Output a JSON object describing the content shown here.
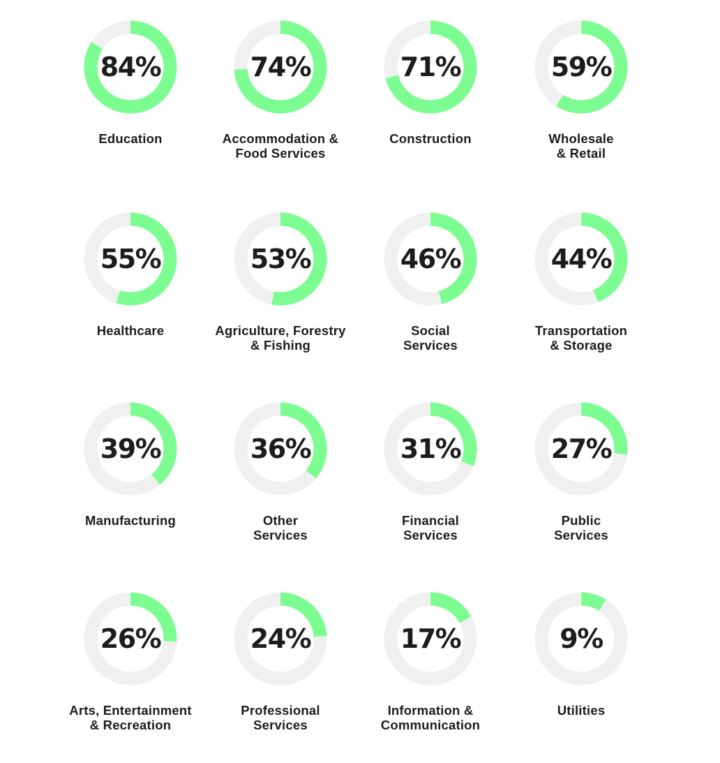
{
  "chart_data": {
    "type": "donut",
    "value_unit": "%",
    "colors": {
      "fill": "#7dfc92",
      "track": "#f0f0f0",
      "text": "#1c1c1c"
    },
    "items": [
      {
        "value": 84,
        "value_label": "84%",
        "label_lines": [
          "Education"
        ]
      },
      {
        "value": 74,
        "value_label": "74%",
        "label_lines": [
          "Accommodation &",
          "Food Services"
        ]
      },
      {
        "value": 71,
        "value_label": "71%",
        "label_lines": [
          "Construction"
        ]
      },
      {
        "value": 59,
        "value_label": "59%",
        "label_lines": [
          "Wholesale",
          "& Retail"
        ]
      },
      {
        "value": 55,
        "value_label": "55%",
        "label_lines": [
          "Healthcare"
        ]
      },
      {
        "value": 53,
        "value_label": "53%",
        "label_lines": [
          "Agriculture, Forestry",
          "& Fishing"
        ]
      },
      {
        "value": 46,
        "value_label": "46%",
        "label_lines": [
          "Social",
          "Services"
        ]
      },
      {
        "value": 44,
        "value_label": "44%",
        "label_lines": [
          "Transportation",
          "& Storage"
        ]
      },
      {
        "value": 39,
        "value_label": "39%",
        "label_lines": [
          "Manufacturing"
        ]
      },
      {
        "value": 36,
        "value_label": "36%",
        "label_lines": [
          "Other",
          "Services"
        ]
      },
      {
        "value": 31,
        "value_label": "31%",
        "label_lines": [
          "Financial",
          "Services"
        ]
      },
      {
        "value": 27,
        "value_label": "27%",
        "label_lines": [
          "Public",
          "Services"
        ]
      },
      {
        "value": 26,
        "value_label": "26%",
        "label_lines": [
          "Arts, Entertainment",
          "& Recreation"
        ]
      },
      {
        "value": 24,
        "value_label": "24%",
        "label_lines": [
          "Professional",
          "Services"
        ]
      },
      {
        "value": 17,
        "value_label": "17%",
        "label_lines": [
          "Information &",
          "Communication"
        ]
      },
      {
        "value": 9,
        "value_label": "9%",
        "label_lines": [
          "Utilities"
        ]
      }
    ]
  }
}
